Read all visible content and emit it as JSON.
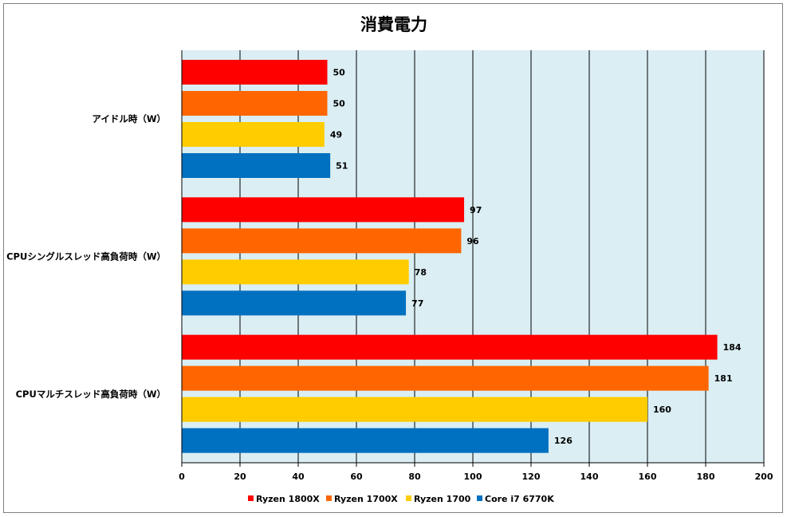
{
  "chart_data": {
    "type": "bar",
    "orientation": "horizontal",
    "title": "消費電力",
    "categories": [
      "アイドル時（W）",
      "CPUシングルスレッド高負荷時（W）",
      "CPUマルチスレッド高負荷時（W）"
    ],
    "series": [
      {
        "name": "Ryzen 1800X",
        "color": "#ff0000",
        "values": [
          50,
          97,
          184
        ]
      },
      {
        "name": "Ryzen 1700X",
        "color": "#ff6600",
        "values": [
          50,
          96,
          181
        ]
      },
      {
        "name": "Ryzen 1700",
        "color": "#ffcc00",
        "values": [
          49,
          78,
          160
        ]
      },
      {
        "name": "Core i7 6770K",
        "color": "#0070c0",
        "values": [
          51,
          77,
          126
        ]
      }
    ],
    "xlim": [
      0,
      200
    ],
    "xticks": [
      0,
      20,
      40,
      60,
      80,
      100,
      120,
      140,
      160,
      180,
      200
    ],
    "grid": true,
    "legend": "bottom",
    "plot_background": "#daeef3"
  }
}
